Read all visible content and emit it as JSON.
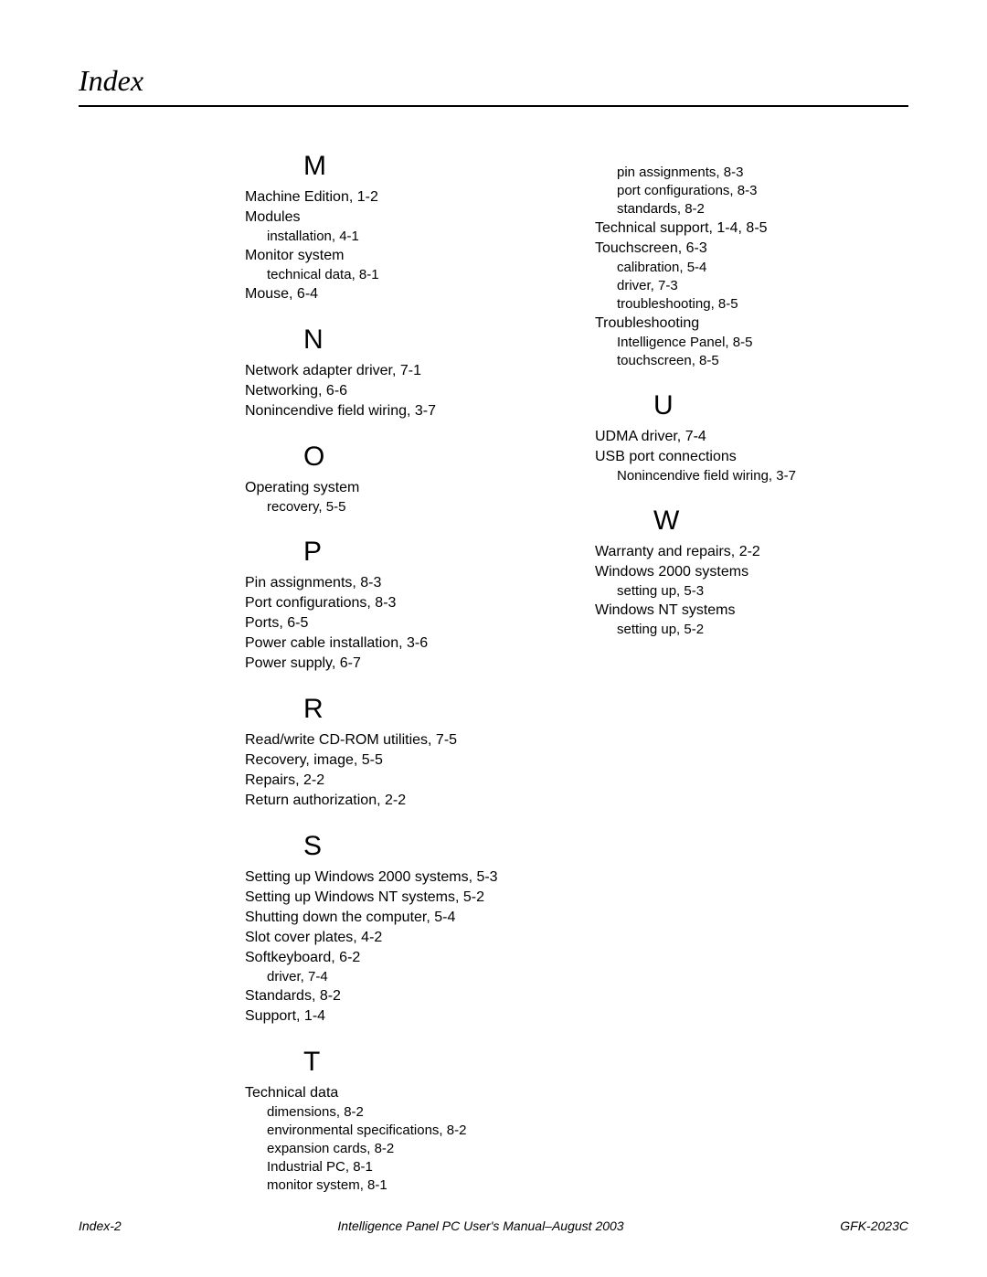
{
  "page": {
    "title": "Index",
    "footer": {
      "left": "Index-2",
      "center": "Intelligence Panel PC User's Manual–August 2003",
      "right": "GFK-2023C"
    }
  },
  "colors": {
    "background": "#ffffff",
    "text": "#000000",
    "rule": "#000000"
  },
  "typography": {
    "title_family": "Times New Roman",
    "title_size_pt": 24,
    "title_italic": true,
    "letter_size_pt": 22,
    "entry_size_pt": 12,
    "sub_size_pt": 11,
    "footer_size_pt": 10,
    "footer_italic": true
  },
  "index": {
    "left_column": [
      {
        "letter": "M",
        "items": [
          {
            "text": "Machine Edition, 1-2"
          },
          {
            "text": "Modules",
            "subs": [
              {
                "text": "installation, 4-1"
              }
            ]
          },
          {
            "text": "Monitor system",
            "subs": [
              {
                "text": "technical data, 8-1"
              }
            ]
          },
          {
            "text": "Mouse, 6-4"
          }
        ]
      },
      {
        "letter": "N",
        "items": [
          {
            "text": "Network adapter driver, 7-1"
          },
          {
            "text": "Networking, 6-6"
          },
          {
            "text": "Nonincendive field wiring, 3-7"
          }
        ]
      },
      {
        "letter": "O",
        "items": [
          {
            "text": "Operating system",
            "subs": [
              {
                "text": "recovery, 5-5"
              }
            ]
          }
        ]
      },
      {
        "letter": "P",
        "items": [
          {
            "text": "Pin assignments, 8-3"
          },
          {
            "text": "Port configurations, 8-3"
          },
          {
            "text": "Ports, 6-5"
          },
          {
            "text": "Power cable installation, 3-6"
          },
          {
            "text": "Power supply, 6-7"
          }
        ]
      },
      {
        "letter": "R",
        "items": [
          {
            "text": "Read/write CD-ROM utilities, 7-5"
          },
          {
            "text": "Recovery, image, 5-5"
          },
          {
            "text": "Repairs, 2-2"
          },
          {
            "text": "Return authorization, 2-2"
          }
        ]
      },
      {
        "letter": "S",
        "items": [
          {
            "text": "Setting up Windows 2000 systems, 5-3"
          },
          {
            "text": "Setting up Windows NT systems, 5-2"
          },
          {
            "text": "Shutting down the computer, 5-4"
          },
          {
            "text": "Slot cover plates, 4-2"
          },
          {
            "text": "Softkeyboard, 6-2",
            "subs": [
              {
                "text": "driver, 7-4"
              }
            ]
          },
          {
            "text": "Standards, 8-2"
          },
          {
            "text": "Support, 1-4"
          }
        ]
      },
      {
        "letter": "T",
        "items": [
          {
            "text": "Technical data",
            "subs": [
              {
                "text": "dimensions, 8-2"
              },
              {
                "text": "environmental specifications, 8-2"
              },
              {
                "text": "expansion cards, 8-2"
              },
              {
                "text": "Industrial PC, 8-1"
              },
              {
                "text": "monitor system, 8-1"
              }
            ]
          }
        ]
      }
    ],
    "right_column": [
      {
        "continuation": true,
        "items": [
          {
            "subs_only": true,
            "subs": [
              {
                "text": "pin assignments, 8-3"
              },
              {
                "text": "port configurations, 8-3"
              },
              {
                "text": "standards, 8-2"
              }
            ]
          },
          {
            "text": "Technical support, 1-4, 8-5"
          },
          {
            "text": "Touchscreen, 6-3",
            "subs": [
              {
                "text": "calibration, 5-4"
              },
              {
                "text": "driver, 7-3"
              },
              {
                "text": "troubleshooting, 8-5"
              }
            ]
          },
          {
            "text": "Troubleshooting",
            "subs": [
              {
                "text": "Intelligence Panel, 8-5"
              },
              {
                "text": "touchscreen, 8-5"
              }
            ]
          }
        ]
      },
      {
        "letter": "U",
        "items": [
          {
            "text": "UDMA driver, 7-4"
          },
          {
            "text": "USB port connections",
            "subs": [
              {
                "text": "Nonincendive field wiring, 3-7"
              }
            ]
          }
        ]
      },
      {
        "letter": "W",
        "items": [
          {
            "text": "Warranty and repairs, 2-2"
          },
          {
            "text": "Windows 2000 systems",
            "subs": [
              {
                "text": "setting up, 5-3"
              }
            ]
          },
          {
            "text": "Windows NT systems",
            "subs": [
              {
                "text": "setting up, 5-2"
              }
            ]
          }
        ]
      }
    ]
  }
}
